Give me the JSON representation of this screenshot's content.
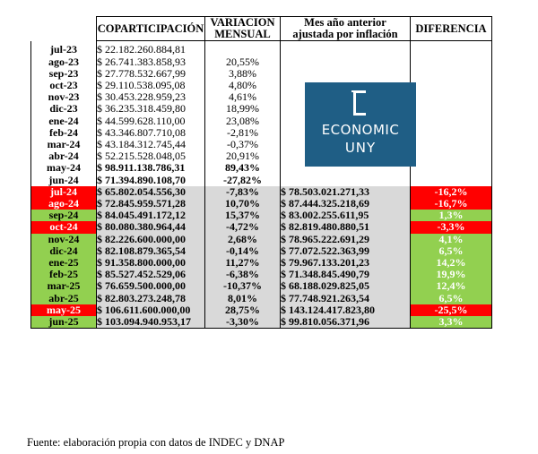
{
  "table": {
    "headers": {
      "copa": "COPARTICIPACIÓN",
      "var_line1": "VARIACION",
      "var_line2": "MENSUAL",
      "prev_line1": "Mes año anterior",
      "prev_line2": "ajustada por inflación",
      "diff": "DIFERENCIA"
    },
    "rows": [
      {
        "month": "jul-23",
        "copa": "$ 22.182.260.884,81",
        "var": "",
        "prev": "",
        "diff": ""
      },
      {
        "month": "ago-23",
        "copa": "$ 26.741.383.858,93",
        "var": "20,55%",
        "prev": "",
        "diff": ""
      },
      {
        "month": "sep-23",
        "copa": "$ 27.778.532.667,99",
        "var": "3,88%",
        "prev": "",
        "diff": ""
      },
      {
        "month": "oct-23",
        "copa": "$ 29.110.538.095,08",
        "var": "4,80%",
        "prev": "",
        "diff": ""
      },
      {
        "month": "nov-23",
        "copa": "$ 30.453.228.959,23",
        "var": "4,61%",
        "prev": "",
        "diff": ""
      },
      {
        "month": "dic-23",
        "copa": "$ 36.235.318.459,80",
        "var": "18,99%",
        "prev": "",
        "diff": ""
      },
      {
        "month": "ene-24",
        "copa": "$ 44.599.628.110,00",
        "var": "23,08%",
        "prev": "",
        "diff": ""
      },
      {
        "month": "feb-24",
        "copa": "$ 43.346.807.710,08",
        "var": "-2,81%",
        "prev": "",
        "diff": ""
      },
      {
        "month": "mar-24",
        "copa": "$ 43.184.312.745,44",
        "var": "-0,37%",
        "prev": "",
        "diff": ""
      },
      {
        "month": "abr-24",
        "copa": "$ 52.215.528.048,05",
        "var": "20,91%",
        "prev": "",
        "diff": ""
      },
      {
        "month": "may-24",
        "copa": "$ 98.911.138.786,31",
        "var": "89,43%",
        "prev": "",
        "diff": ""
      },
      {
        "month": "jun-24",
        "copa": "$ 71.394.890.108,70",
        "var": "-27,82%",
        "prev": "",
        "diff": ""
      },
      {
        "month": "jul-24",
        "copa": "$ 65.802.054.556,30",
        "var": "-7,83%",
        "prev": "$ 78.503.021.271,33",
        "diff": "-16,2%"
      },
      {
        "month": "ago-24",
        "copa": "$ 72.845.959.571,28",
        "var": "10,70%",
        "prev": "$ 87.444.325.218,69",
        "diff": "-16,7%"
      },
      {
        "month": "sep-24",
        "copa": "$ 84.045.491.172,12",
        "var": "15,37%",
        "prev": "$ 83.002.255.611,95",
        "diff": "1,3%"
      },
      {
        "month": "oct-24",
        "copa": "$ 80.080.380.964,44",
        "var": "-4,72%",
        "prev": "$ 82.819.480.880,51",
        "diff": "-3,3%"
      },
      {
        "month": "nov-24",
        "copa": "$ 82.226.600.000,00",
        "var": "2,68%",
        "prev": "$ 78.965.222.691,29",
        "diff": "4,1%"
      },
      {
        "month": "dic-24",
        "copa": "$ 82.108.879.365,54",
        "var": "-0,14%",
        "prev": "$ 77.072.522.363,99",
        "diff": "6,5%"
      },
      {
        "month": "ene-25",
        "copa": "$ 91.358.800.000,00",
        "var": "11,27%",
        "prev": "$ 79.967.133.201,23",
        "diff": "14,2%"
      },
      {
        "month": "feb-25",
        "copa": "$ 85.527.452.529,06",
        "var": "-6,38%",
        "prev": "$ 71.348.845.490,79",
        "diff": "19,9%"
      },
      {
        "month": "mar-25",
        "copa": "$ 76.659.500.000,00",
        "var": "-10,37%",
        "prev": "$ 68.188.029.825,05",
        "diff": "12,4%"
      },
      {
        "month": "abr-25",
        "copa": "$ 82.803.273.248,78",
        "var": "8,01%",
        "prev": "$ 77.748.921.263,54",
        "diff": "6,5%"
      },
      {
        "month": "may-25",
        "copa": "$ 106.611.600.000,00",
        "var": "28,75%",
        "prev": "$ 143.124.417.823,80",
        "diff": "-25,5%"
      },
      {
        "month": "jun-25",
        "copa": "$ 103.094.940.953,17",
        "var": "-3,30%",
        "prev": "$ 99.810.056.371,96",
        "diff": "3,3%"
      }
    ]
  },
  "logo": {
    "line1": "ECONOMIC",
    "line2": "UNY"
  },
  "source": "Fuente: elaboración propia con datos de INDEC y DNAP",
  "colors": {
    "negative": "#ff0000",
    "positive": "#92d050",
    "shaded": "#d9d9d9",
    "logo_bg": "#1f5e85"
  }
}
